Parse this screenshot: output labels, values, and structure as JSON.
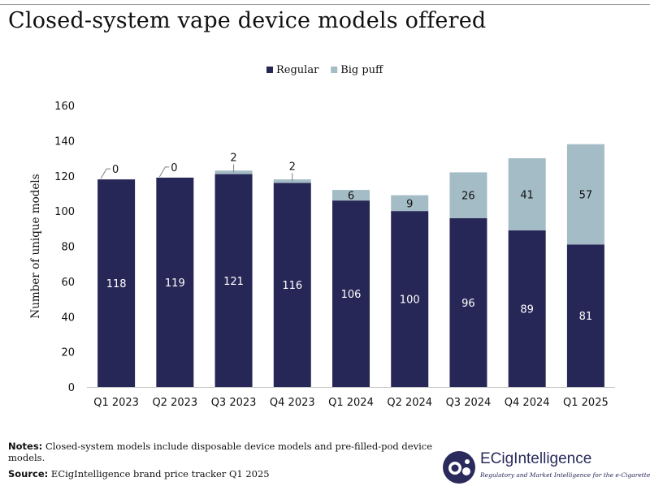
{
  "page": {
    "title": "Closed-system vape device models offered",
    "notes_label": "Notes:",
    "notes_text": "Closed-system models include disposable device models and pre-filled-pod device models.",
    "source_label": "Source:",
    "source_text": "ECigIntelligence brand price tracker Q1 2025"
  },
  "logo": {
    "name": "ECigIntelligence",
    "tagline": "Regulatory and Market Intelligence for the e-Cigarette Sector",
    "icon": "ecig-logo-icon"
  },
  "colors": {
    "regular": "#272757",
    "big_puff": "#a4bcc5",
    "axis": "#c9c9c9",
    "leader": "#7f7f7f",
    "text": "#111111"
  },
  "chart_data": {
    "type": "bar",
    "stacked": true,
    "title": "Closed-system vape device models offered",
    "xlabel": "",
    "ylabel": "Number of unique models",
    "ylim": [
      0,
      160
    ],
    "yticks": [
      0,
      20,
      40,
      60,
      80,
      100,
      120,
      140,
      160
    ],
    "grid": false,
    "legend_position": "top-center",
    "categories": [
      "Q1 2023",
      "Q2 2023",
      "Q3 2023",
      "Q4 2023",
      "Q1 2024",
      "Q2 2024",
      "Q3 2024",
      "Q4 2024",
      "Q1 2025"
    ],
    "series": [
      {
        "name": "Regular",
        "values": [
          118,
          119,
          121,
          116,
          106,
          100,
          96,
          89,
          81
        ]
      },
      {
        "name": "Big puff",
        "values": [
          0,
          0,
          2,
          2,
          6,
          9,
          26,
          41,
          57
        ]
      }
    ]
  }
}
